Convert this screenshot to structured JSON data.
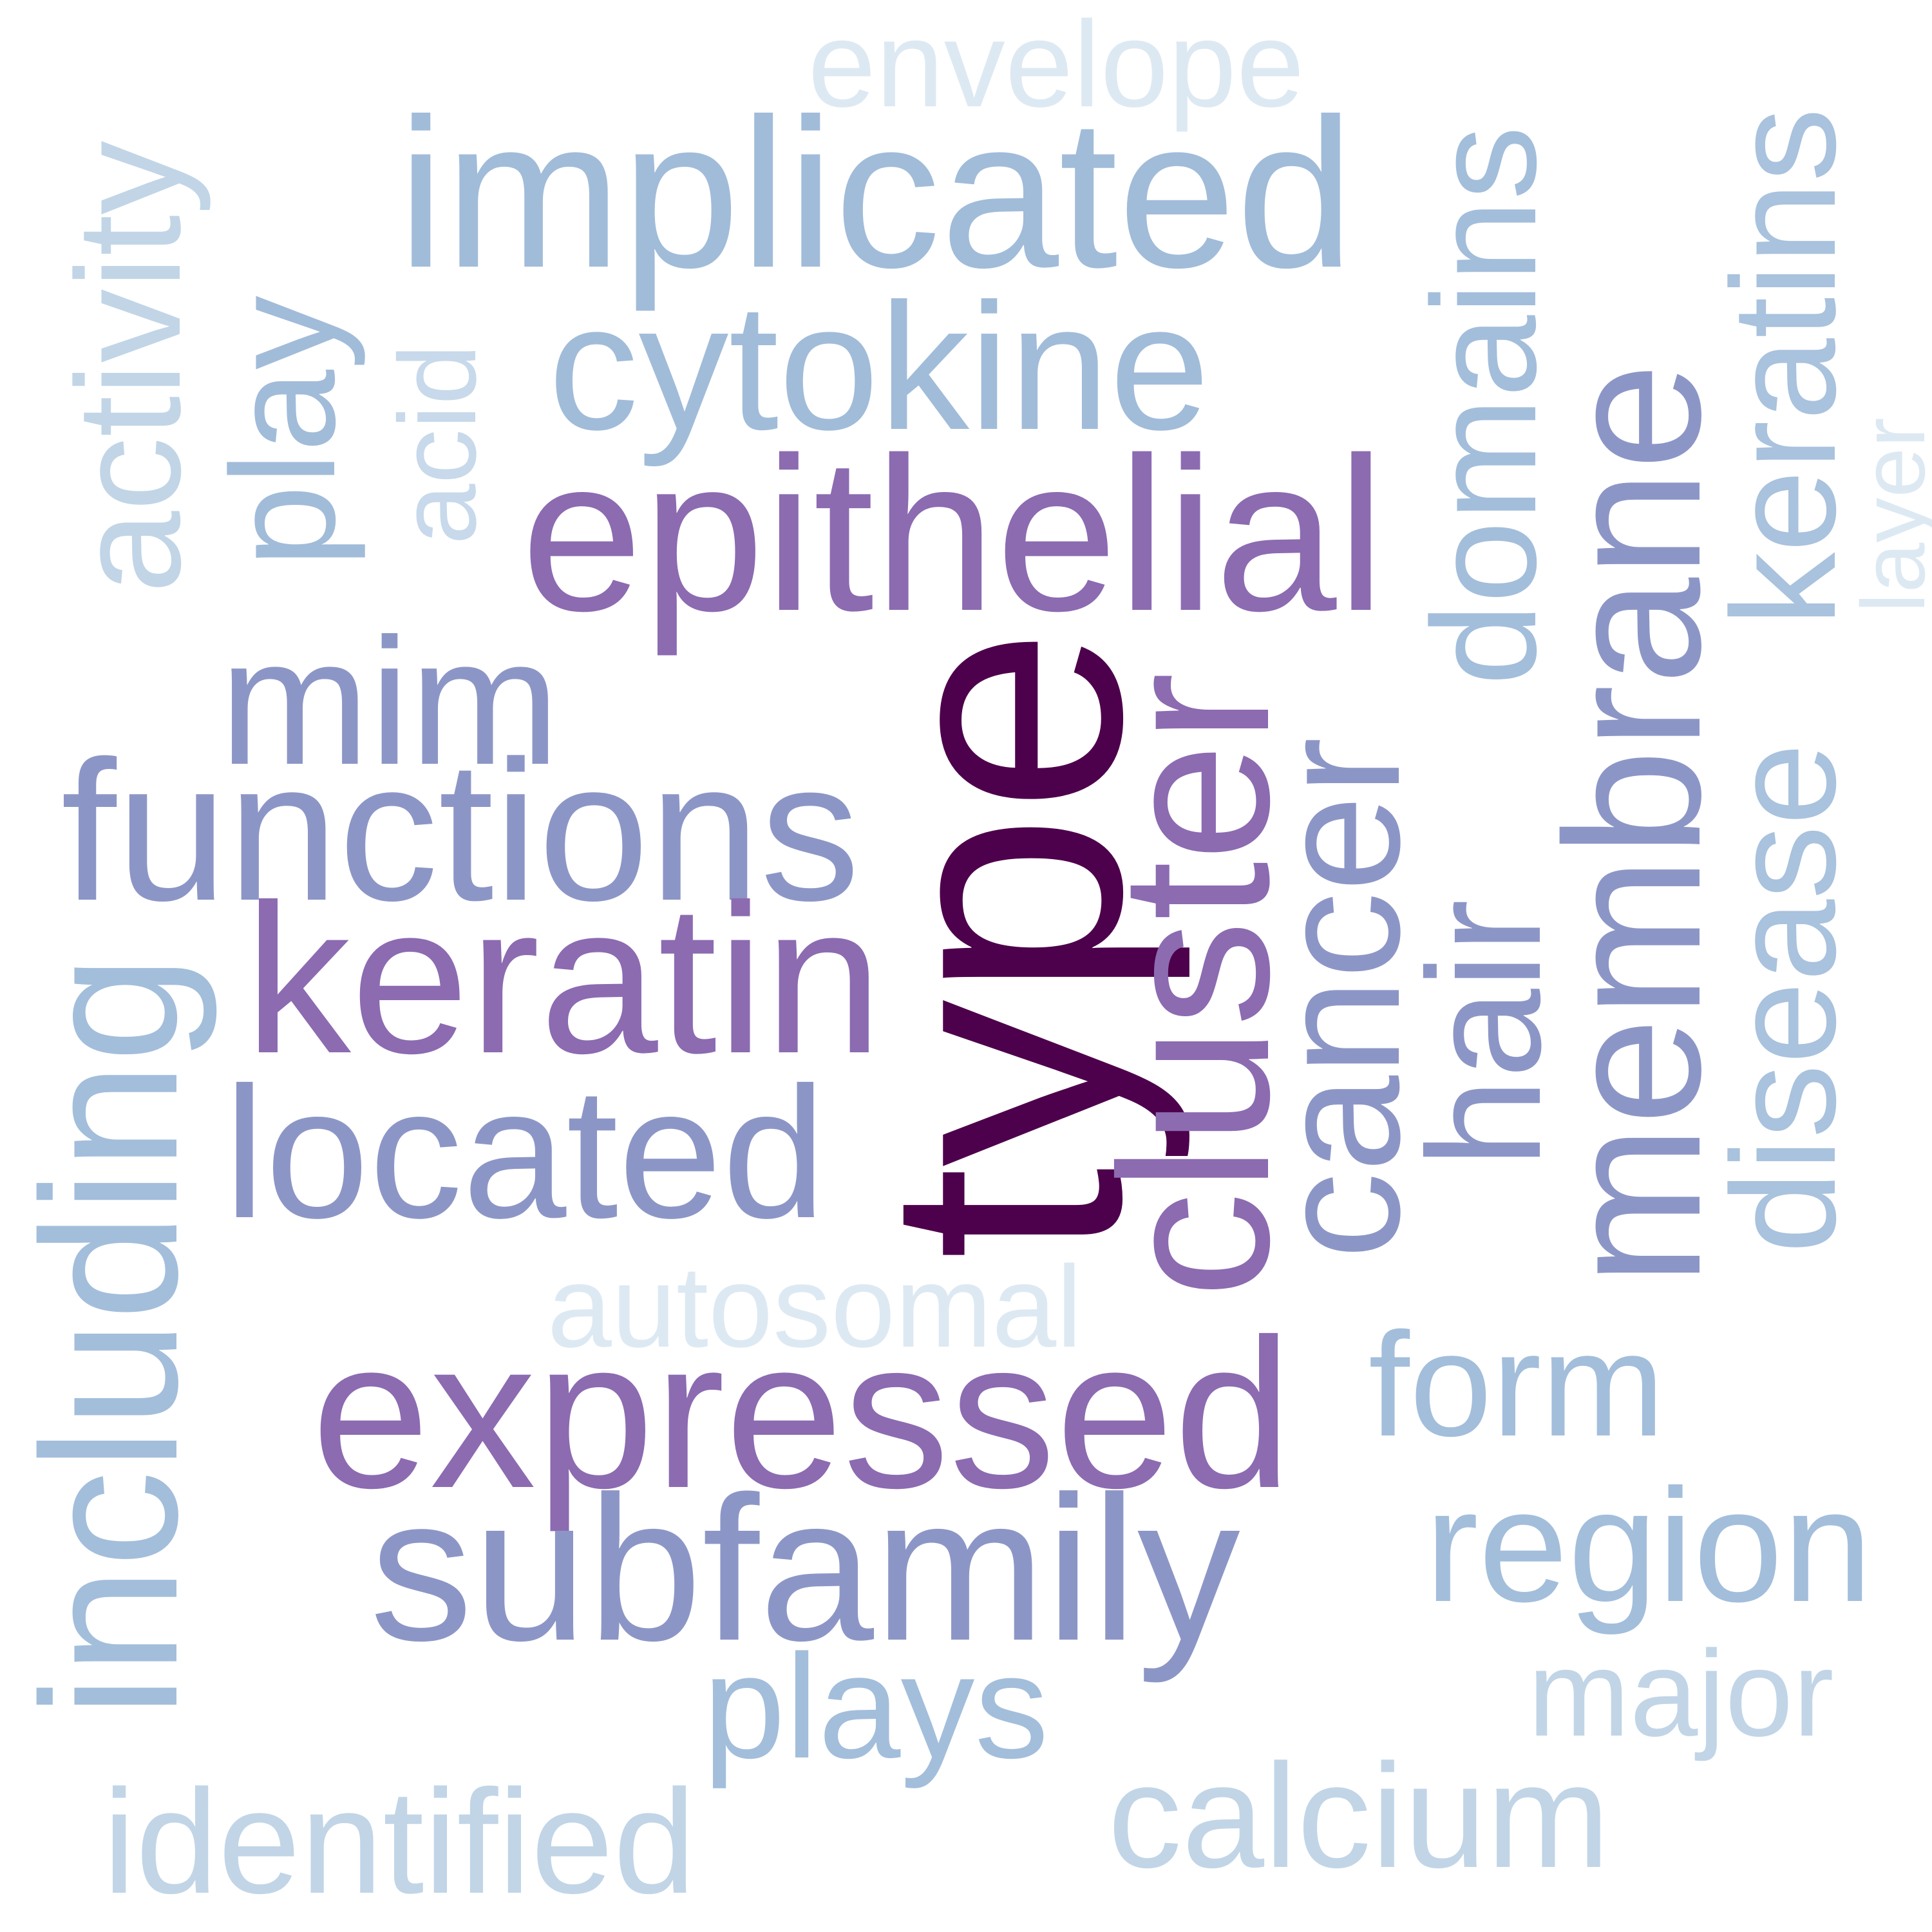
{
  "words": {
    "envelope": {
      "text": "envelope",
      "color": "#dde9f2"
    },
    "implicated": {
      "text": "implicated",
      "color": "#a1bcd9"
    },
    "domains": {
      "text": "domains",
      "color": "#a3bedb"
    },
    "keratins": {
      "text": "keratins",
      "color": "#a9c2dd"
    },
    "activity": {
      "text": "activity",
      "color": "#c1d5e7"
    },
    "play": {
      "text": "play",
      "color": "#a1bcd9"
    },
    "acid": {
      "text": "acid",
      "color": "#c7d9ea"
    },
    "cytokine": {
      "text": "cytokine",
      "color": "#a1bcd9"
    },
    "epithelial": {
      "text": "epithelial",
      "color": "#8c6bb1"
    },
    "layer": {
      "text": "layer",
      "color": "#dde9f2"
    },
    "membrane": {
      "text": "membrane",
      "color": "#8c96c6"
    },
    "mim": {
      "text": "mim",
      "color": "#8c96c6"
    },
    "functions": {
      "text": "functions",
      "color": "#8c96c6"
    },
    "type": {
      "text": "type",
      "color": "#4d004b"
    },
    "cluster": {
      "text": "cluster",
      "color": "#8c6bb1"
    },
    "cancer": {
      "text": "cancer",
      "color": "#8c96c6"
    },
    "hair": {
      "text": "hair",
      "color": "#8c96c6"
    },
    "disease": {
      "text": "disease",
      "color": "#a9c2dd"
    },
    "keratin": {
      "text": "keratin",
      "color": "#8c6bb1"
    },
    "including": {
      "text": "including",
      "color": "#a3bedb"
    },
    "located": {
      "text": "located",
      "color": "#8c96c6"
    },
    "autosomal": {
      "text": "autosomal",
      "color": "#dde9f2"
    },
    "expressed": {
      "text": "expressed",
      "color": "#8c6bb1"
    },
    "form": {
      "text": "form",
      "color": "#a3bedb"
    },
    "subfamily": {
      "text": "subfamily",
      "color": "#8c96c6"
    },
    "region": {
      "text": "region",
      "color": "#a3bedb"
    },
    "plays": {
      "text": "plays",
      "color": "#a3bedb"
    },
    "major": {
      "text": "major",
      "color": "#c1d5e7"
    },
    "calcium": {
      "text": "calcium",
      "color": "#c1d5e7"
    },
    "identified": {
      "text": "identified",
      "color": "#c1d5e7"
    }
  }
}
